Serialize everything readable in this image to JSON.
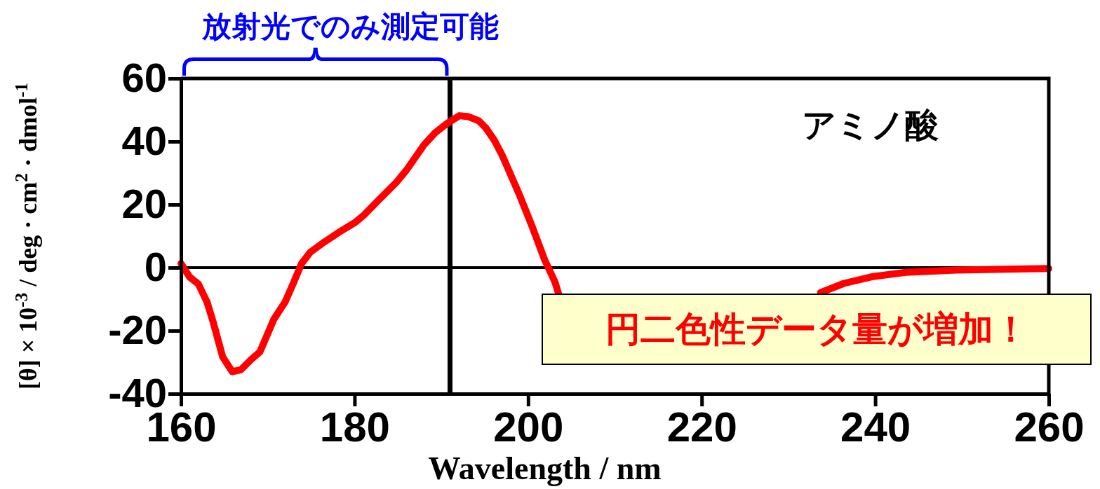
{
  "chart_data": {
    "type": "line",
    "xlabel": "Wavelength / nm",
    "ylabel": "[θ] × 10$^{-3}$ / deg · cm$^{2}$ · dmol$^{-1}$",
    "annotations": [
      "アミノ酸",
      "放射光でのみ測定可能",
      "円二色性データ量が増加！"
    ],
    "xlim": [
      160,
      260
    ],
    "ylim": [
      -40,
      60
    ],
    "xticks": [
      160,
      180,
      200,
      220,
      240,
      260
    ],
    "yticks": [
      -40,
      -20,
      0,
      20,
      40,
      60
    ],
    "ref_lines": [
      {
        "axis": "y",
        "value": 0,
        "color": "#000000"
      },
      {
        "axis": "x",
        "value": 191,
        "color": "#000000"
      }
    ],
    "grid": false,
    "legend": false,
    "marker": "none",
    "line_style": "solid",
    "series": [
      {
        "color": "#ff0000",
        "x": [
          160,
          161,
          162,
          163,
          163.7,
          164.8,
          165.9,
          166.9,
          168.1,
          169.1,
          170.7,
          172,
          173,
          173.9,
          174.9,
          176.5,
          178.2,
          180.1,
          181.1,
          182.8,
          184.8,
          186,
          188,
          189.3,
          190.6,
          192.1,
          193.1,
          194.3,
          195.1,
          196.1,
          197,
          199,
          200.5,
          201.9,
          203.1,
          203.5,
          218,
          233.7,
          236.4,
          239.6,
          243.5,
          249.3,
          255.1,
          260
        ],
        "values": [
          1.3,
          -3,
          -5.2,
          -10.9,
          -17.2,
          -28.3,
          -33,
          -32.4,
          -29.1,
          -26.7,
          -16.4,
          -10.9,
          -4.6,
          1.3,
          4.9,
          8.1,
          11.2,
          14.4,
          16.7,
          21.5,
          27,
          31,
          38.9,
          42.8,
          45.6,
          48.2,
          47.9,
          46.6,
          44.4,
          40.4,
          35.7,
          23.1,
          12.8,
          2.5,
          -4.6,
          -8.2,
          null,
          -7.9,
          -5.0,
          -2.9,
          -1.5,
          -0.8,
          -0.5,
          -0.3
        ]
      }
    ]
  }
}
